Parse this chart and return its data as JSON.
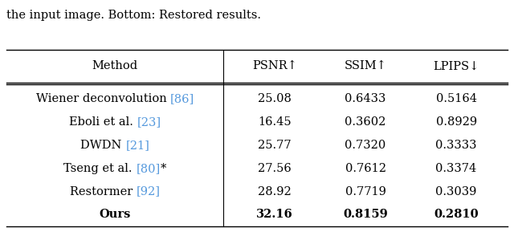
{
  "caption_top": "the input image. Bottom: Restored results.",
  "headers": [
    "Method",
    "PSNR↑",
    "SSIM↑",
    "LPIPS↓"
  ],
  "rows": [
    {
      "method_parts": [
        {
          "text": "Wiener deconvolution ",
          "color": "black"
        },
        {
          "text": "[86]",
          "color": "cite"
        }
      ],
      "values": [
        "25.08",
        "0.6433",
        "0.5164"
      ],
      "bold": false
    },
    {
      "method_parts": [
        {
          "text": "Eboli et al. ",
          "color": "black"
        },
        {
          "text": "[23]",
          "color": "cite"
        }
      ],
      "values": [
        "16.45",
        "0.3602",
        "0.8929"
      ],
      "bold": false
    },
    {
      "method_parts": [
        {
          "text": "DWDN ",
          "color": "black"
        },
        {
          "text": "[21]",
          "color": "cite"
        }
      ],
      "values": [
        "25.77",
        "0.7320",
        "0.3333"
      ],
      "bold": false
    },
    {
      "method_parts": [
        {
          "text": "Tseng et al. ",
          "color": "black"
        },
        {
          "text": "[80]",
          "color": "cite"
        },
        {
          "text": "*",
          "color": "black"
        }
      ],
      "values": [
        "27.56",
        "0.7612",
        "0.3374"
      ],
      "bold": false
    },
    {
      "method_parts": [
        {
          "text": "Restormer ",
          "color": "black"
        },
        {
          "text": "[92]",
          "color": "cite"
        }
      ],
      "values": [
        "28.92",
        "0.7719",
        "0.3039"
      ],
      "bold": false
    },
    {
      "method_parts": [
        {
          "text": "Ours",
          "color": "black"
        }
      ],
      "values": [
        "32.16",
        "0.8159",
        "0.2810"
      ],
      "bold": true
    }
  ],
  "cite_color": "#5599dd",
  "bg_color": "#ffffff",
  "text_color": "#000000",
  "font_size": 10.5,
  "caption_font_size": 10.5
}
